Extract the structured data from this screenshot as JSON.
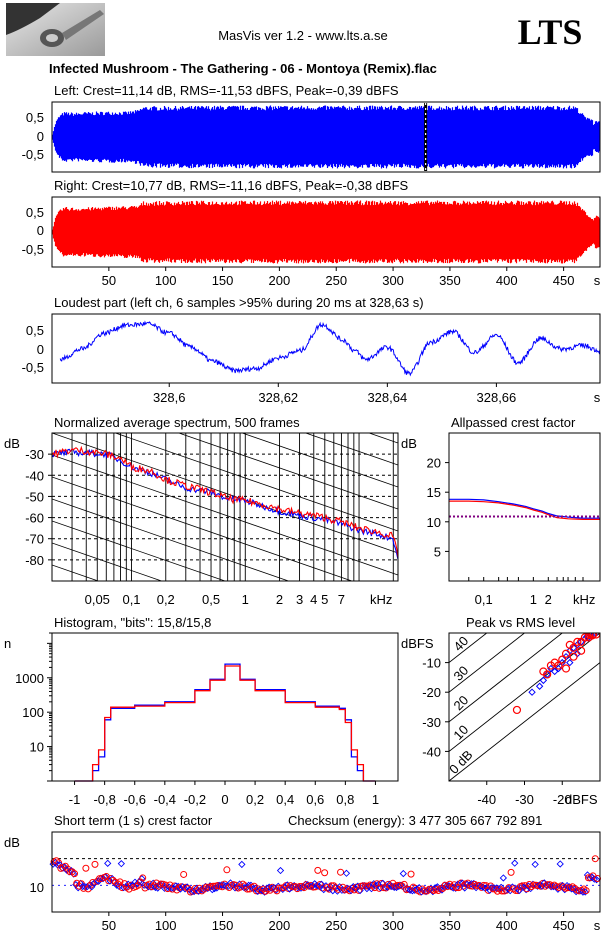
{
  "header": {
    "app_title": "MasVis ver 1.2 - www.lts.a.se",
    "brand": "LTS",
    "file_title": "Infected Mushroom - The Gathering - 06 - Montoya (Remix).flac",
    "logo_icon": "guitar-headstock-icon"
  },
  "colors": {
    "left": "#0000ff",
    "right": "#ff0000",
    "crest_line": "#800080"
  },
  "chart_data": [
    {
      "id": "left",
      "type": "line",
      "title": "Left: Crest=11,14 dB, RMS=-11,53 dBFS, Peak=-0,39 dBFS",
      "yticks": [
        "0,5",
        "0",
        "-0,5"
      ],
      "ylim": [
        -1,
        1
      ],
      "xlim": [
        0,
        482
      ],
      "envelope": [
        [
          0,
          0.08
        ],
        [
          3,
          0.45
        ],
        [
          6,
          0.62
        ],
        [
          10,
          0.72
        ],
        [
          20,
          0.7
        ],
        [
          30,
          0.72
        ],
        [
          40,
          0.73
        ],
        [
          55,
          0.74
        ],
        [
          65,
          0.73
        ],
        [
          75,
          0.78
        ],
        [
          80,
          0.88
        ],
        [
          150,
          0.9
        ],
        [
          250,
          0.9
        ],
        [
          350,
          0.9
        ],
        [
          420,
          0.9
        ],
        [
          460,
          0.9
        ],
        [
          470,
          0.55
        ],
        [
          475,
          0.55
        ],
        [
          476,
          0.35
        ],
        [
          478,
          0.5
        ],
        [
          482,
          0.45
        ]
      ],
      "marker_s": 328.63
    },
    {
      "id": "right",
      "type": "line",
      "title": "Right: Crest=10,77 dB, RMS=-11,16 dBFS, Peak=-0,38 dBFS",
      "yticks": [
        "0,5",
        "0",
        "-0,5"
      ],
      "ylim": [
        -1,
        1
      ],
      "xlim": [
        0,
        482
      ],
      "xticks": [
        "50",
        "100",
        "150",
        "200",
        "250",
        "300",
        "350",
        "400",
        "450"
      ],
      "xunit": "s",
      "envelope": [
        [
          0,
          0.08
        ],
        [
          3,
          0.45
        ],
        [
          6,
          0.62
        ],
        [
          10,
          0.72
        ],
        [
          20,
          0.7
        ],
        [
          40,
          0.72
        ],
        [
          75,
          0.76
        ],
        [
          80,
          0.88
        ],
        [
          150,
          0.9
        ],
        [
          300,
          0.9
        ],
        [
          420,
          0.9
        ],
        [
          460,
          0.9
        ],
        [
          470,
          0.55
        ],
        [
          476,
          0.35
        ],
        [
          478,
          0.5
        ],
        [
          482,
          0.45
        ]
      ]
    },
    {
      "id": "loudest",
      "type": "line",
      "title": "Loudest part (left  ch, 6 samples >95% during 20 ms at 328,63 s)",
      "yticks": [
        "0,5",
        "0",
        "-0,5"
      ],
      "ylim": [
        -1,
        1
      ],
      "xlim": [
        328.5785,
        328.679
      ],
      "xticks": [
        "328,6",
        "328,62",
        "328,64",
        "328,66"
      ],
      "xunit": "s",
      "x": [
        328.58,
        328.584,
        328.588,
        328.592,
        328.596,
        328.6,
        328.604,
        328.608,
        328.612,
        328.616,
        328.62,
        328.624,
        328.628,
        328.632,
        328.634,
        328.636,
        328.64,
        328.644,
        328.648,
        328.652,
        328.656,
        328.66,
        328.664,
        328.668,
        328.672,
        328.676,
        328.679
      ],
      "y": [
        -0.3,
        0.0,
        0.45,
        0.68,
        0.72,
        0.45,
        0.05,
        -0.35,
        -0.62,
        -0.55,
        -0.25,
        -0.05,
        0.7,
        0.25,
        -0.05,
        -0.3,
        0.05,
        -0.7,
        0.2,
        0.5,
        -0.1,
        0.4,
        -0.4,
        0.3,
        0.0,
        0.1,
        -0.05
      ]
    },
    {
      "id": "spectrum",
      "type": "line",
      "title": "Normalized average spectrum, 500 frames",
      "ylabel": "dB",
      "yticks": [
        "-30",
        "-40",
        "-50",
        "-60",
        "-70",
        "-80"
      ],
      "ylim": [
        -90,
        -20
      ],
      "xscale": "log",
      "xlim": [
        0.02,
        22
      ],
      "xticks": [
        "0,05",
        "0,1",
        "0,2",
        "0,5",
        "1",
        "2",
        "3",
        "4",
        "5",
        "7"
      ],
      "xunit": "kHz",
      "x": [
        0.02,
        0.03,
        0.04,
        0.06,
        0.08,
        0.1,
        0.15,
        0.2,
        0.3,
        0.5,
        0.7,
        1,
        1.5,
        2,
        3,
        4,
        5,
        7,
        10,
        15,
        20,
        22
      ],
      "left": [
        -30,
        -29,
        -29.5,
        -30,
        -33,
        -36,
        -39,
        -42,
        -46,
        -48,
        -51,
        -52,
        -55,
        -57,
        -59,
        -60,
        -61,
        -63,
        -66,
        -68,
        -70,
        -80
      ],
      "right": [
        -30,
        -28,
        -28.5,
        -30,
        -32,
        -36,
        -38,
        -42,
        -45,
        -48,
        -51,
        -52,
        -54,
        -56,
        -58,
        -59,
        -60,
        -62,
        -65,
        -67,
        -69,
        -79
      ]
    },
    {
      "id": "allpass",
      "type": "line",
      "title": "Allpassed crest factor",
      "ylabel": "dB",
      "yticks": [
        "20",
        "15",
        "10",
        "5"
      ],
      "ylim": [
        0,
        25
      ],
      "xscale": "log",
      "xlim": [
        0.02,
        22
      ],
      "xticks": [
        "0,1",
        "1",
        "2"
      ],
      "xunit": "kHz",
      "x": [
        0.02,
        0.05,
        0.1,
        0.2,
        0.4,
        0.7,
        1,
        1.5,
        2,
        3,
        5,
        10,
        22
      ],
      "left": [
        13.8,
        13.8,
        13.7,
        13.4,
        13.0,
        12.6,
        12.2,
        11.8,
        11.4,
        11.0,
        10.8,
        10.6,
        10.6
      ],
      "right": [
        13.5,
        13.5,
        13.4,
        13.2,
        12.8,
        12.4,
        12.0,
        11.6,
        11.2,
        10.7,
        10.5,
        10.4,
        10.4
      ],
      "crest_level": 10.9
    },
    {
      "id": "histogram",
      "type": "line",
      "title": "Histogram, \"bits\": 15,8/15,8",
      "ylabel": "n",
      "yscale": "log",
      "yticks": [
        "1000",
        "100",
        "10"
      ],
      "ylim": [
        1,
        20000
      ],
      "xlim": [
        -1.15,
        1.15
      ],
      "xticks": [
        "-1",
        "-0,8",
        "-0,6",
        "-0,4",
        "-0,2",
        "0",
        "0,2",
        "0,4",
        "0,6",
        "0,8",
        "1"
      ],
      "x": [
        -1.0,
        -0.92,
        -0.88,
        -0.84,
        -0.8,
        -0.76,
        -0.6,
        -0.4,
        -0.2,
        -0.1,
        0,
        0.1,
        0.2,
        0.4,
        0.6,
        0.76,
        0.8,
        0.84,
        0.88,
        0.92,
        1.0
      ],
      "left": [
        1,
        1,
        2,
        5,
        60,
        130,
        160,
        200,
        450,
        900,
        2500,
        900,
        450,
        200,
        150,
        130,
        60,
        5,
        2,
        1,
        1
      ],
      "right": [
        1,
        1,
        3,
        8,
        70,
        140,
        150,
        190,
        420,
        850,
        2200,
        850,
        420,
        190,
        140,
        120,
        50,
        8,
        3,
        1,
        1
      ]
    },
    {
      "id": "peak_rms",
      "type": "scatter",
      "title": "Peak vs RMS level",
      "ylabel": "dBFS",
      "xlabel": "dBFS",
      "yticks": [
        "-10",
        "-20",
        "-30",
        "-40"
      ],
      "xticks": [
        "-40",
        "-30",
        "-20"
      ],
      "xlim": [
        -50,
        -10
      ],
      "ylim": [
        -50,
        0
      ],
      "diag_labels": [
        "0 dB",
        "10",
        "20",
        "30",
        "40"
      ],
      "left_points": [
        [
          -25,
          -16
        ],
        [
          -22,
          -13
        ],
        [
          -20,
          -10
        ],
        [
          -18,
          -6
        ],
        [
          -16,
          -4
        ],
        [
          -14,
          -2
        ],
        [
          -13,
          -1.5
        ],
        [
          -12,
          -1
        ],
        [
          -28,
          -20
        ],
        [
          -24,
          -14
        ],
        [
          -19,
          -8
        ],
        [
          -17,
          -5
        ],
        [
          -15,
          -3
        ],
        [
          -21,
          -12
        ],
        [
          -26,
          -18
        ],
        [
          -23,
          -12
        ],
        [
          -13.5,
          -1.2
        ],
        [
          -12.5,
          -0.8
        ],
        [
          -11.5,
          -0.6
        ],
        [
          -16,
          -7
        ],
        [
          -18,
          -10
        ]
      ],
      "right_points": [
        [
          -32,
          -26
        ],
        [
          -24,
          -14
        ],
        [
          -21,
          -11
        ],
        [
          -19,
          -7
        ],
        [
          -17,
          -5
        ],
        [
          -15,
          -3
        ],
        [
          -13,
          -1.5
        ],
        [
          -12,
          -0.8
        ],
        [
          -11,
          -0.5
        ],
        [
          -22,
          -10
        ],
        [
          -20,
          -9
        ],
        [
          -18,
          -4
        ],
        [
          -16,
          -3
        ],
        [
          -14,
          -1.5
        ],
        [
          -25,
          -13
        ],
        [
          -23,
          -11
        ],
        [
          -12.8,
          -0.7
        ],
        [
          -11.8,
          -0.4
        ],
        [
          -17,
          -8
        ],
        [
          -19,
          -12
        ],
        [
          -15,
          -6
        ]
      ]
    },
    {
      "id": "short_crest",
      "type": "scatter",
      "title": "Short term (1 s) crest factor",
      "checksum": "Checksum (energy):  3 477 305 667 792 891",
      "ylabel": "dB",
      "yticks": [
        "10"
      ],
      "ylim": [
        0,
        30
      ],
      "xlim": [
        0,
        482
      ],
      "xticks": [
        "50",
        "100",
        "150",
        "200",
        "250",
        "300",
        "350",
        "400",
        "450"
      ],
      "xunit": "s",
      "dash_level": 20,
      "avg_level": 10
    }
  ]
}
